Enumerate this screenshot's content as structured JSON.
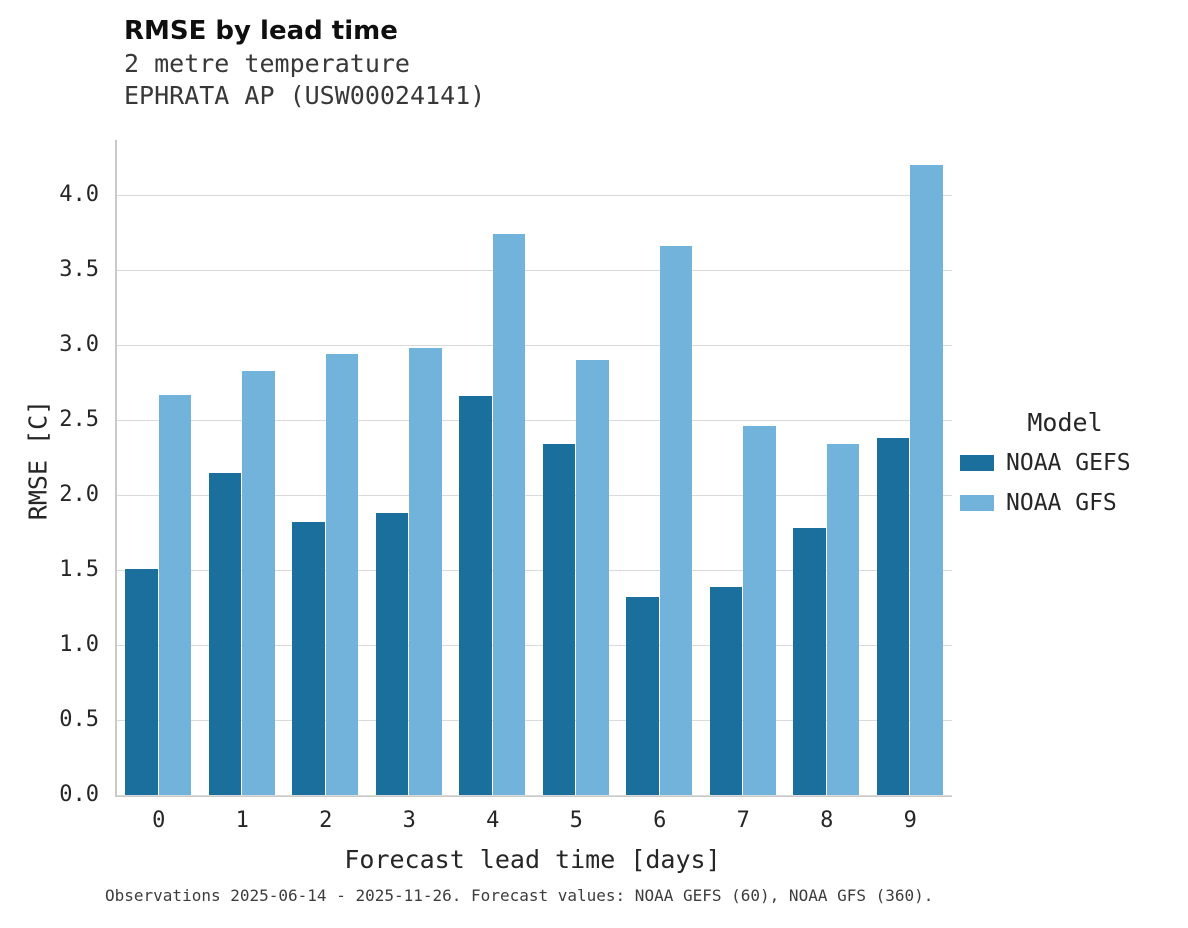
{
  "title": "RMSE by lead time",
  "subtitle_line1": "2 metre temperature",
  "subtitle_line2": "EPHRATA AP (USW00024141)",
  "footer": "Observations 2025-06-14 - 2025-11-26. Forecast values: NOAA GEFS (60), NOAA GFS (360).",
  "legend": {
    "title": "Model",
    "entries": [
      {
        "label": "NOAA GEFS",
        "color": "#1b6f9d"
      },
      {
        "label": "NOAA GFS",
        "color": "#72b3dc"
      }
    ]
  },
  "chart_data": {
    "type": "bar",
    "title": "RMSE by lead time",
    "subtitle": "2 metre temperature — EPHRATA AP (USW00024141)",
    "xlabel": "Forecast lead time [days]",
    "ylabel": "RMSE [C]",
    "categories": [
      "0",
      "1",
      "2",
      "3",
      "4",
      "5",
      "6",
      "7",
      "8",
      "9"
    ],
    "series": [
      {
        "name": "NOAA GEFS",
        "color": "#1b6f9d",
        "values": [
          1.51,
          2.15,
          1.82,
          1.88,
          2.66,
          2.34,
          1.32,
          1.39,
          1.78,
          2.38
        ]
      },
      {
        "name": "NOAA GFS",
        "color": "#72b3dc",
        "values": [
          2.67,
          2.83,
          2.94,
          2.98,
          3.74,
          2.9,
          3.66,
          2.46,
          2.34,
          4.2
        ]
      }
    ],
    "ylim": [
      0,
      4.37
    ],
    "yticks": [
      0.0,
      0.5,
      1.0,
      1.5,
      2.0,
      2.5,
      3.0,
      3.5,
      4.0
    ],
    "grid": true,
    "legend_position": "right"
  }
}
